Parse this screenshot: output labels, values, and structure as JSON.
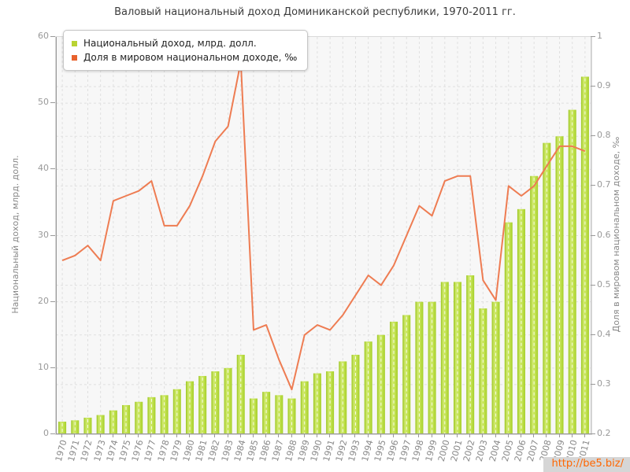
{
  "page": {
    "title": "Валовый национальный доход Доминиканской республики, 1970-2011 гг."
  },
  "watermark": {
    "text": "http://be5.biz/",
    "color": "#ff6600"
  },
  "chart_data": {
    "type": "bar+line",
    "title": "Валовый национальный доход Доминиканской республики, 1970-2011 гг.",
    "categories": [
      "1970",
      "1971",
      "1972",
      "1973",
      "1974",
      "1975",
      "1976",
      "1977",
      "1978",
      "1979",
      "1980",
      "1981",
      "1982",
      "1983",
      "1984",
      "1985",
      "1986",
      "1987",
      "1988",
      "1989",
      "1990",
      "1991",
      "1992",
      "1993",
      "1994",
      "1995",
      "1996",
      "1997",
      "1998",
      "1999",
      "2000",
      "2001",
      "2002",
      "2003",
      "2004",
      "2005",
      "2006",
      "2007",
      "2008",
      "2009",
      "2010",
      "2011"
    ],
    "series": [
      {
        "name": "Национальный доход, млрд. долл.",
        "type": "bar",
        "axis": "left",
        "swatch_color": "#b9d332",
        "bar_gradient": [
          "#9cc61f",
          "#cfe96d",
          "#c6e457",
          "#a5cf27"
        ],
        "values": [
          1.9,
          2.1,
          2.5,
          2.9,
          3.6,
          4.4,
          4.9,
          5.6,
          5.9,
          6.8,
          8.0,
          8.8,
          9.5,
          10.0,
          12.0,
          5.4,
          6.4,
          5.9,
          5.4,
          8.0,
          9.2,
          9.5,
          11.0,
          12.0,
          14.0,
          15.0,
          17.0,
          18.0,
          20.0,
          20.0,
          23.0,
          23.0,
          24.0,
          19.0,
          20.0,
          32.0,
          34.0,
          39.0,
          44.0,
          45.0,
          49.0,
          54.0
        ]
      },
      {
        "name": "Доля в мировом национальном доходе, ‰",
        "type": "line",
        "axis": "right",
        "swatch_color": "#e8622d",
        "line_color": "#ee7c52",
        "values": [
          0.55,
          0.56,
          0.58,
          0.55,
          0.67,
          0.68,
          0.69,
          0.71,
          0.62,
          0.62,
          0.66,
          0.72,
          0.79,
          0.82,
          0.95,
          0.41,
          0.42,
          0.35,
          0.29,
          0.4,
          0.42,
          0.41,
          0.44,
          0.48,
          0.52,
          0.5,
          0.54,
          0.6,
          0.66,
          0.64,
          0.71,
          0.72,
          0.72,
          0.51,
          0.47,
          0.7,
          0.68,
          0.7,
          0.74,
          0.78,
          0.78,
          0.77
        ]
      }
    ],
    "left_axis": {
      "label": "Национальный доход, млрд. долл.",
      "min": 0,
      "max": 60,
      "ticks": [
        0,
        10,
        20,
        30,
        40,
        50,
        60
      ]
    },
    "right_axis": {
      "label": "Доля в мировом национальном доходе, ‰",
      "min": 0.2,
      "max": 1,
      "ticks": [
        0.2,
        0.3,
        0.4,
        0.5,
        0.6,
        0.7,
        0.8,
        0.9,
        1
      ]
    },
    "layout_hints": {
      "grid": true,
      "grid_color": "#e0e0e0",
      "plot_bg": "#f7f7f7",
      "legend_position": "top-left",
      "x_label_rotation": -75
    }
  }
}
